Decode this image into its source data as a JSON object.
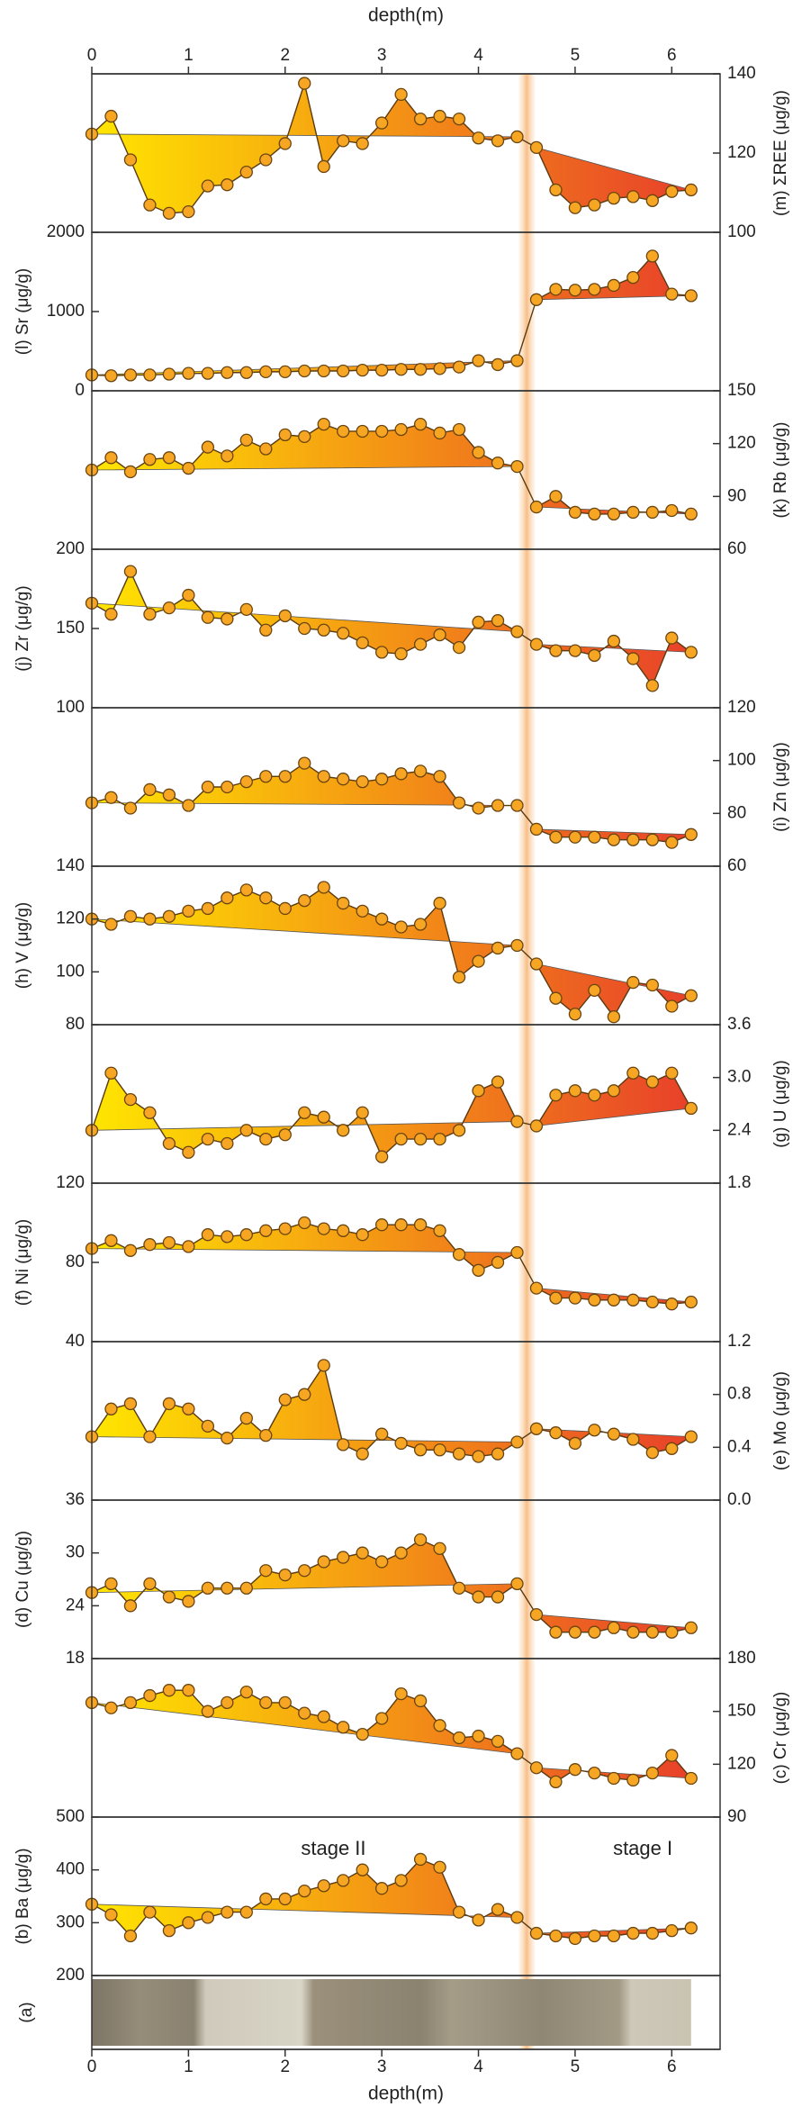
{
  "depth_axis": {
    "label": "depth(m)",
    "xlim": [
      0,
      6.5
    ],
    "xticks": [
      0,
      1,
      2,
      3,
      4,
      5,
      6
    ]
  },
  "stage_boundary": 4.5,
  "core_label": "(a)",
  "fill_colors": [
    "#ffe600",
    "#e8402a"
  ],
  "point_color": "#f6a623",
  "chart_data": [
    {
      "type": "line",
      "label": "(m) ΣREE (μg/g)",
      "axis_side": "right",
      "ylim": [
        100,
        140
      ],
      "yticks": [
        100,
        120,
        140
      ],
      "x": [
        0,
        0.2,
        0.4,
        0.6,
        0.8,
        1,
        1.2,
        1.4,
        1.6,
        1.8,
        2,
        2.2,
        2.4,
        2.6,
        2.8,
        3,
        3.2,
        3.4,
        3.6,
        3.8,
        4,
        4.2,
        4.4,
        4.6,
        4.8,
        5,
        5.2,
        5.4,
        5.6,
        5.8,
        6,
        6.2
      ],
      "values": [
        124.8,
        129.3,
        118.3,
        106.9,
        104.8,
        105.2,
        111.7,
        112,
        115.2,
        118.3,
        122.4,
        137.6,
        116.6,
        123.1,
        122.4,
        127.6,
        134.8,
        128.6,
        129.3,
        128.6,
        123.8,
        123.1,
        124.1,
        121.4,
        110.7,
        106.2,
        106.9,
        108.6,
        109,
        108,
        110.3,
        110.7
      ]
    },
    {
      "type": "line",
      "label": "(l) Sr (μg/g)",
      "axis_side": "left",
      "ylim": [
        0,
        2000
      ],
      "yticks": [
        0,
        1000,
        2000
      ],
      "x": [
        0,
        0.2,
        0.4,
        0.6,
        0.8,
        1,
        1.2,
        1.4,
        1.6,
        1.8,
        2,
        2.2,
        2.4,
        2.6,
        2.8,
        3,
        3.2,
        3.4,
        3.6,
        3.8,
        4,
        4.2,
        4.4,
        4.6,
        4.8,
        5,
        5.2,
        5.4,
        5.6,
        5.8,
        6,
        6.2
      ],
      "values": [
        200,
        190,
        200,
        200,
        210,
        220,
        220,
        230,
        230,
        240,
        240,
        250,
        250,
        250,
        260,
        260,
        270,
        270,
        280,
        300,
        380,
        330,
        380,
        1150,
        1280,
        1270,
        1280,
        1330,
        1430,
        1700,
        1220,
        1200
      ]
    },
    {
      "type": "line",
      "label": "(k) Rb (μg/g)",
      "axis_side": "right",
      "ylim": [
        60,
        150
      ],
      "yticks": [
        60,
        90,
        120,
        150
      ],
      "x": [
        0,
        0.2,
        0.4,
        0.6,
        0.8,
        1,
        1.2,
        1.4,
        1.6,
        1.8,
        2,
        2.2,
        2.4,
        2.6,
        2.8,
        3,
        3.2,
        3.4,
        3.6,
        3.8,
        4,
        4.2,
        4.4,
        4.6,
        4.8,
        5,
        5.2,
        5.4,
        5.6,
        5.8,
        6,
        6.2
      ],
      "values": [
        105,
        112,
        104,
        111,
        112,
        106,
        118,
        113,
        122,
        117,
        125,
        124,
        131,
        127,
        127,
        127,
        128,
        131,
        126,
        128,
        115,
        109,
        107,
        84,
        90,
        81,
        80,
        80,
        81,
        81,
        82,
        80
      ]
    },
    {
      "type": "line",
      "label": "(j) Zr (μg/g)",
      "axis_side": "left",
      "ylim": [
        100,
        200
      ],
      "yticks": [
        100,
        150,
        200
      ],
      "x": [
        0,
        0.2,
        0.4,
        0.6,
        0.8,
        1,
        1.2,
        1.4,
        1.6,
        1.8,
        2,
        2.2,
        2.4,
        2.6,
        2.8,
        3,
        3.2,
        3.4,
        3.6,
        3.8,
        4,
        4.2,
        4.4,
        4.6,
        4.8,
        5,
        5.2,
        5.4,
        5.6,
        5.8,
        6,
        6.2
      ],
      "values": [
        166,
        159,
        186,
        159,
        163,
        171,
        157,
        156,
        162,
        149,
        158,
        150,
        149,
        147,
        141,
        135,
        134,
        140,
        146,
        138,
        154,
        155,
        148,
        140,
        136,
        136,
        133,
        142,
        131,
        114,
        144,
        135
      ]
    },
    {
      "type": "line",
      "label": "(i) Zn (μg/g)",
      "axis_side": "right",
      "ylim": [
        60,
        120
      ],
      "yticks": [
        60,
        80,
        100,
        120
      ],
      "x": [
        0,
        0.2,
        0.4,
        0.6,
        0.8,
        1,
        1.2,
        1.4,
        1.6,
        1.8,
        2,
        2.2,
        2.4,
        2.6,
        2.8,
        3,
        3.2,
        3.4,
        3.6,
        3.8,
        4,
        4.2,
        4.4,
        4.6,
        4.8,
        5,
        5.2,
        5.4,
        5.6,
        5.8,
        6,
        6.2
      ],
      "values": [
        84,
        86,
        82,
        89,
        87,
        83,
        90,
        90,
        92,
        94,
        94,
        99,
        94,
        93,
        92,
        93,
        95,
        96,
        94,
        84,
        82,
        83,
        83,
        74,
        71,
        71,
        71,
        70,
        70,
        70,
        69,
        72
      ]
    },
    {
      "type": "line",
      "label": "(h) V (μg/g)",
      "axis_side": "left",
      "ylim": [
        80,
        140
      ],
      "yticks": [
        80,
        100,
        120,
        140
      ],
      "x": [
        0,
        0.2,
        0.4,
        0.6,
        0.8,
        1,
        1.2,
        1.4,
        1.6,
        1.8,
        2,
        2.2,
        2.4,
        2.6,
        2.8,
        3,
        3.2,
        3.4,
        3.6,
        3.8,
        4,
        4.2,
        4.4,
        4.6,
        4.8,
        5,
        5.2,
        5.4,
        5.6,
        5.8,
        6,
        6.2
      ],
      "values": [
        120,
        118,
        121,
        120,
        121,
        123,
        124,
        128,
        131,
        128,
        124,
        127,
        132,
        126,
        123,
        120,
        117,
        118,
        126,
        98,
        104,
        109,
        110,
        103,
        90,
        84,
        93,
        83,
        96,
        95,
        87,
        91
      ]
    },
    {
      "type": "line",
      "label": "(g) U (μg/g)",
      "axis_side": "right",
      "ylim": [
        1.8,
        3.6
      ],
      "yticks": [
        1.8,
        2.4,
        {
          "value": 3,
          "label": "3.0"
        },
        3.6
      ],
      "x": [
        0,
        0.2,
        0.4,
        0.6,
        0.8,
        1,
        1.2,
        1.4,
        1.6,
        1.8,
        2,
        2.2,
        2.4,
        2.6,
        2.8,
        3,
        3.2,
        3.4,
        3.6,
        3.8,
        4,
        4.2,
        4.4,
        4.6,
        4.8,
        5,
        5.2,
        5.4,
        5.6,
        5.8,
        6,
        6.2
      ],
      "values": [
        2.4,
        3.05,
        2.75,
        2.6,
        2.25,
        2.15,
        2.3,
        2.25,
        2.4,
        2.3,
        2.35,
        2.6,
        2.55,
        2.4,
        2.6,
        2.1,
        2.3,
        2.3,
        2.3,
        2.4,
        2.85,
        2.95,
        2.5,
        2.45,
        2.8,
        2.85,
        2.8,
        2.85,
        3.05,
        2.95,
        3.05,
        2.65
      ]
    },
    {
      "type": "line",
      "label": "(f) Ni (μg/g)",
      "axis_side": "left",
      "ylim": [
        40,
        120
      ],
      "yticks": [
        40,
        80,
        120
      ],
      "x": [
        0,
        0.2,
        0.4,
        0.6,
        0.8,
        1,
        1.2,
        1.4,
        1.6,
        1.8,
        2,
        2.2,
        2.4,
        2.6,
        2.8,
        3,
        3.2,
        3.4,
        3.6,
        3.8,
        4,
        4.2,
        4.4,
        4.6,
        4.8,
        5,
        5.2,
        5.4,
        5.6,
        5.8,
        6,
        6.2
      ],
      "values": [
        87,
        91,
        86,
        89,
        90,
        88,
        94,
        93,
        94,
        96,
        97,
        100,
        97,
        96,
        94,
        99,
        99,
        99,
        96,
        84,
        76,
        80,
        85,
        67,
        62,
        62,
        61,
        61,
        61,
        60,
        59,
        60
      ]
    },
    {
      "type": "line",
      "label": "(e) Mo (μg/g)",
      "axis_side": "right",
      "ylim": [
        0,
        1.2
      ],
      "yticks": [
        {
          "value": 0,
          "label": "0.0"
        },
        0.4,
        0.8,
        1.2
      ],
      "x": [
        0,
        0.2,
        0.4,
        0.6,
        0.8,
        1,
        1.2,
        1.4,
        1.6,
        1.8,
        2,
        2.2,
        2.4,
        2.6,
        2.8,
        3,
        3.2,
        3.4,
        3.6,
        3.8,
        4,
        4.2,
        4.4,
        4.6,
        4.8,
        5,
        5.2,
        5.4,
        5.6,
        5.8,
        6,
        6.2
      ],
      "values": [
        0.48,
        0.69,
        0.73,
        0.48,
        0.73,
        0.69,
        0.56,
        0.47,
        0.62,
        0.49,
        0.76,
        0.8,
        1.02,
        0.42,
        0.35,
        0.5,
        0.43,
        0.38,
        0.38,
        0.35,
        0.33,
        0.35,
        0.44,
        0.54,
        0.51,
        0.43,
        0.53,
        0.5,
        0.46,
        0.36,
        0.39,
        0.48
      ]
    },
    {
      "type": "line",
      "label": "(d) Cu (μg/g)",
      "axis_side": "left",
      "ylim": [
        18,
        36
      ],
      "yticks": [
        18,
        24,
        30,
        36
      ],
      "x": [
        0,
        0.2,
        0.4,
        0.6,
        0.8,
        1,
        1.2,
        1.4,
        1.6,
        1.8,
        2,
        2.2,
        2.4,
        2.6,
        2.8,
        3,
        3.2,
        3.4,
        3.6,
        3.8,
        4,
        4.2,
        4.4,
        4.6,
        4.8,
        5,
        5.2,
        5.4,
        5.6,
        5.8,
        6,
        6.2
      ],
      "values": [
        25.5,
        26.5,
        24,
        26.5,
        25,
        24.5,
        26,
        26,
        26,
        28,
        27.5,
        28,
        29,
        29.5,
        30,
        29,
        30,
        31.5,
        30.5,
        26,
        25,
        25,
        26.5,
        23,
        21,
        21,
        21,
        21.5,
        21,
        21,
        21,
        21.5
      ]
    },
    {
      "type": "line",
      "label": "(c) Cr (μg/g)",
      "axis_side": "right",
      "ylim": [
        90,
        180
      ],
      "yticks": [
        90,
        120,
        150,
        180
      ],
      "x": [
        0,
        0.2,
        0.4,
        0.6,
        0.8,
        1,
        1.2,
        1.4,
        1.6,
        1.8,
        2,
        2.2,
        2.4,
        2.6,
        2.8,
        3,
        3.2,
        3.4,
        3.6,
        3.8,
        4,
        4.2,
        4.4,
        4.6,
        4.8,
        5,
        5.2,
        5.4,
        5.6,
        5.8,
        6,
        6.2
      ],
      "values": [
        155,
        152,
        155,
        159,
        162,
        162,
        150,
        155,
        161,
        155,
        155,
        149,
        147,
        141,
        137,
        146,
        160,
        156,
        142,
        135,
        136,
        133,
        126,
        118,
        110,
        117,
        115,
        112,
        111,
        115,
        125,
        112
      ]
    },
    {
      "type": "line",
      "label": "(b) Ba (μg/g)",
      "axis_side": "left",
      "ylim": [
        200,
        500
      ],
      "yticks": [
        200,
        300,
        400,
        500
      ],
      "annotations": [
        "stage II",
        "stage I"
      ],
      "x": [
        0,
        0.2,
        0.4,
        0.6,
        0.8,
        1,
        1.2,
        1.4,
        1.6,
        1.8,
        2,
        2.2,
        2.4,
        2.6,
        2.8,
        3,
        3.2,
        3.4,
        3.6,
        3.8,
        4,
        4.2,
        4.4,
        4.6,
        4.8,
        5,
        5.2,
        5.4,
        5.6,
        5.8,
        6,
        6.2
      ],
      "values": [
        335,
        315,
        275,
        320,
        285,
        300,
        310,
        320,
        320,
        345,
        345,
        360,
        370,
        380,
        400,
        365,
        380,
        420,
        405,
        320,
        305,
        325,
        310,
        280,
        275,
        270,
        275,
        275,
        280,
        280,
        285,
        290
      ]
    }
  ]
}
